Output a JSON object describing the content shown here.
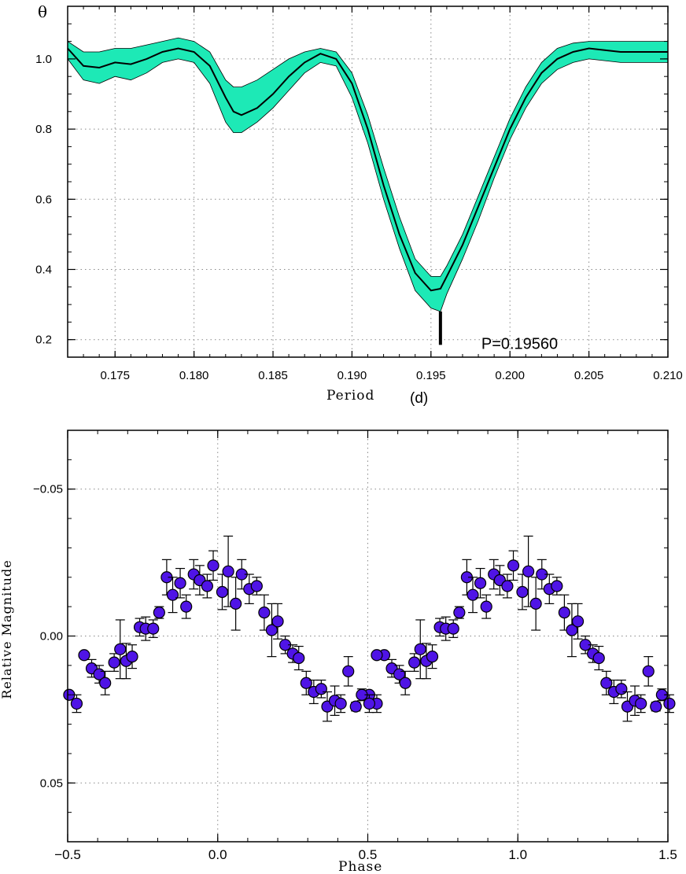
{
  "chart_data": [
    {
      "type": "line",
      "xlabel": "Period",
      "xunit": "(d)",
      "ylabel": "θ",
      "xlim": [
        0.172,
        0.21
      ],
      "ylim": [
        0.15,
        1.15
      ],
      "xticks": [
        0.175,
        0.18,
        0.185,
        0.19,
        0.195,
        0.2,
        0.205,
        0.21
      ],
      "xtick_labels": [
        "0.175",
        "0.180",
        "0.185",
        "0.190",
        "0.195",
        "0.200",
        "0.205",
        "0.210"
      ],
      "yticks": [
        0.2,
        0.4,
        0.6,
        0.8,
        1.0
      ],
      "ytick_labels": [
        "0.2",
        "0.4",
        "0.6",
        "0.8",
        "1.0"
      ],
      "grid": true,
      "band_color": "#1de9b6",
      "annotation": {
        "text": "P=0.19560",
        "x": 0.1956,
        "y": 0.2
      },
      "series": [
        {
          "x": [
            0.172,
            0.173,
            0.174,
            0.175,
            0.176,
            0.177,
            0.178,
            0.179,
            0.18,
            0.181,
            0.182,
            0.1825,
            0.183,
            0.184,
            0.185,
            0.186,
            0.187,
            0.188,
            0.189,
            0.19,
            0.191,
            0.192,
            0.193,
            0.194,
            0.195,
            0.1956,
            0.196,
            0.197,
            0.198,
            0.199,
            0.2,
            0.201,
            0.202,
            0.203,
            0.204,
            0.205,
            0.206,
            0.207,
            0.208,
            0.209,
            0.21
          ],
          "values": [
            1.03,
            0.98,
            0.975,
            0.99,
            0.985,
            1.0,
            1.02,
            1.03,
            1.02,
            0.98,
            0.89,
            0.85,
            0.84,
            0.86,
            0.9,
            0.95,
            0.99,
            1.015,
            1.0,
            0.93,
            0.8,
            0.64,
            0.5,
            0.39,
            0.34,
            0.345,
            0.38,
            0.47,
            0.58,
            0.69,
            0.8,
            0.89,
            0.96,
            1.0,
            1.02,
            1.03,
            1.025,
            1.02,
            1.02,
            1.02,
            1.02
          ],
          "upper": [
            1.05,
            1.02,
            1.02,
            1.03,
            1.03,
            1.04,
            1.05,
            1.06,
            1.05,
            1.02,
            0.94,
            0.92,
            0.92,
            0.94,
            0.97,
            1.0,
            1.02,
            1.03,
            1.02,
            0.96,
            0.84,
            0.69,
            0.55,
            0.43,
            0.38,
            0.38,
            0.41,
            0.5,
            0.61,
            0.72,
            0.83,
            0.92,
            0.99,
            1.03,
            1.045,
            1.05,
            1.05,
            1.05,
            1.05,
            1.05,
            1.05
          ],
          "lower": [
            1.0,
            0.94,
            0.93,
            0.95,
            0.94,
            0.96,
            0.99,
            1.0,
            0.99,
            0.93,
            0.82,
            0.79,
            0.79,
            0.82,
            0.86,
            0.91,
            0.96,
            0.99,
            0.98,
            0.89,
            0.76,
            0.6,
            0.46,
            0.34,
            0.29,
            0.28,
            0.33,
            0.43,
            0.54,
            0.66,
            0.77,
            0.86,
            0.93,
            0.97,
            0.99,
            1.0,
            0.995,
            0.99,
            0.99,
            0.99,
            0.99
          ]
        }
      ]
    },
    {
      "type": "scatter",
      "xlabel": "Phase",
      "ylabel": "Relative Magnitude",
      "xlim": [
        -0.5,
        1.5
      ],
      "ylim": [
        0.07,
        -0.07
      ],
      "y_inverted": true,
      "xticks": [
        -0.5,
        0.0,
        0.5,
        1.0,
        1.5
      ],
      "xtick_labels": [
        "−0.5",
        "0.0",
        "0.5",
        "1.0",
        "1.5"
      ],
      "yticks": [
        -0.05,
        0.0,
        0.05
      ],
      "ytick_labels": [
        "−0.05",
        "0.00",
        "0.05"
      ],
      "grid": true,
      "marker_color": "#4f14e6",
      "series": [
        {
          "x": [
            -0.495,
            -0.47,
            -0.445,
            -0.42,
            -0.395,
            -0.375,
            -0.345,
            -0.325,
            -0.305,
            -0.285,
            -0.26,
            -0.24,
            -0.215,
            -0.195,
            -0.17,
            -0.15,
            -0.125,
            -0.105,
            -0.08,
            -0.06,
            -0.035,
            -0.015,
            0.015,
            0.035,
            0.06,
            0.08,
            0.105,
            0.13,
            0.155,
            0.18,
            0.2,
            0.225,
            0.25,
            0.27,
            0.295,
            0.32,
            0.345,
            0.365,
            0.39,
            0.41,
            0.435,
            0.46,
            0.48,
            0.505,
            0.53
          ],
          "values": [
            0.02,
            0.023,
            0.0065,
            0.011,
            0.013,
            0.016,
            0.009,
            0.0045,
            0.0085,
            0.007,
            -0.003,
            -0.0025,
            -0.0025,
            -0.008,
            -0.02,
            -0.014,
            -0.018,
            -0.01,
            -0.021,
            -0.019,
            -0.017,
            -0.024,
            -0.015,
            -0.022,
            -0.011,
            -0.021,
            -0.016,
            -0.017,
            -0.008,
            -0.002,
            -0.005,
            0.003,
            0.006,
            0.0075,
            0.016,
            0.019,
            0.018,
            0.024,
            0.022,
            0.023,
            0.012,
            0.024,
            0.02,
            0.023,
            0.0065
          ],
          "errors": [
            0.0,
            0.003,
            0.0,
            0.003,
            0.003,
            0.004,
            0.003,
            0.01,
            0.006,
            0.004,
            0.003,
            0.004,
            0.003,
            0.002,
            0.006,
            0.006,
            0.005,
            0.004,
            0.005,
            0.005,
            0.004,
            0.005,
            0.006,
            0.012,
            0.009,
            0.005,
            0.005,
            0.003,
            0.006,
            0.009,
            0.006,
            0.003,
            0.003,
            0.004,
            0.004,
            0.004,
            0.003,
            0.005,
            0.005,
            0.003,
            0.005,
            0.0015,
            0.002,
            0.003,
            0.0
          ]
        }
      ]
    }
  ]
}
